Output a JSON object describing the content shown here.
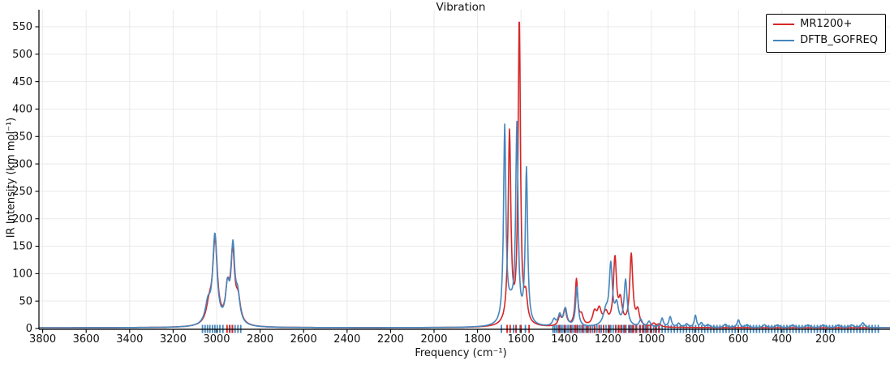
{
  "figure": {
    "title": "Vibration",
    "background": "#ffffff",
    "grid_color": "#e9e9e9",
    "spine_color": "#000000",
    "text_color": "#111111"
  },
  "legend": {
    "position": "upper right",
    "entries": [
      {
        "label": "MR1200+",
        "color": "#d62728"
      },
      {
        "label": "DFTB_GOFREQ",
        "color": "#4686bc"
      }
    ]
  },
  "chart_data": {
    "type": "line",
    "title": "Vibration",
    "xlabel": "Frequency (cm⁻¹)",
    "ylabel": "IR Intensity (km mol⁻¹)",
    "x_axis": {
      "reversed": true,
      "min": -97,
      "max": 3817,
      "ticks": [
        3800,
        3600,
        3400,
        3200,
        3000,
        2800,
        2600,
        2400,
        2200,
        2000,
        1800,
        1600,
        1400,
        1200,
        1000,
        800,
        600,
        400,
        200
      ]
    },
    "y_axis": {
      "min": 0,
      "max": 568,
      "ticks": [
        0,
        50,
        100,
        150,
        200,
        250,
        300,
        350,
        400,
        450,
        500,
        550
      ]
    },
    "grid": true,
    "series": [
      {
        "name": "MR1200+",
        "color": "#d62728",
        "baseline": 1.4,
        "peaks": [
          [
            3034,
            32,
            16
          ],
          [
            3007,
            152,
            13
          ],
          [
            2950,
            58,
            11
          ],
          [
            2926,
            126,
            11
          ],
          [
            2901,
            42,
            13
          ],
          [
            1653,
            350,
            7.5
          ],
          [
            1608,
            556,
            6.5
          ],
          [
            1578,
            45,
            9
          ],
          [
            1422,
            16,
            9
          ],
          [
            1398,
            30,
            9
          ],
          [
            1345,
            84,
            7
          ],
          [
            1322,
            18,
            10
          ],
          [
            1262,
            24,
            11
          ],
          [
            1240,
            28,
            11
          ],
          [
            1210,
            22,
            12
          ],
          [
            1168,
            122,
            8.5
          ],
          [
            1143,
            42,
            10
          ],
          [
            1093,
            130,
            8.5
          ],
          [
            1063,
            26,
            9
          ],
          [
            990,
            6,
            10
          ],
          [
            965,
            5,
            10
          ]
        ],
        "sticks": [
          2952,
          2939,
          2927,
          1664,
          1650,
          1623,
          1600,
          1563,
          1424,
          1400,
          1372,
          1350,
          1340,
          1318,
          1295,
          1282,
          1262,
          1240,
          1220,
          1194,
          1164,
          1150,
          1138,
          1123,
          1100,
          1086,
          1071,
          1052,
          1037,
          1022,
          1005,
          981,
          966
        ]
      },
      {
        "name": "DFTB_GOFREQ",
        "color": "#4686bc",
        "baseline": 1.4,
        "peaks": [
          [
            3040,
            36,
            15
          ],
          [
            3008,
            162,
            12
          ],
          [
            2950,
            62,
            11
          ],
          [
            2925,
            135,
            10
          ],
          [
            2903,
            48,
            12
          ],
          [
            1675,
            355,
            6.5
          ],
          [
            1647,
            30,
            20
          ],
          [
            1619,
            355,
            6.5
          ],
          [
            1575,
            282,
            6.5
          ],
          [
            1448,
            12,
            9
          ],
          [
            1422,
            20,
            9
          ],
          [
            1396,
            32,
            9
          ],
          [
            1343,
            72,
            7
          ],
          [
            1210,
            26,
            14
          ],
          [
            1187,
            108,
            8.5
          ],
          [
            1160,
            35,
            10
          ],
          [
            1119,
            84,
            8.5
          ],
          [
            1049,
            13,
            8
          ],
          [
            1011,
            10,
            8
          ],
          [
            951,
            16,
            7
          ],
          [
            914,
            19,
            7
          ],
          [
            875,
            7,
            8
          ],
          [
            838,
            6,
            8
          ],
          [
            798,
            22,
            6
          ],
          [
            770,
            8,
            7
          ],
          [
            740,
            5,
            8
          ],
          [
            660,
            6,
            8
          ],
          [
            600,
            14,
            7
          ],
          [
            560,
            5,
            8
          ],
          [
            480,
            5,
            9
          ],
          [
            420,
            5,
            9
          ],
          [
            350,
            5,
            9
          ],
          [
            280,
            5,
            9
          ],
          [
            210,
            5,
            9
          ],
          [
            140,
            5,
            9
          ],
          [
            80,
            5,
            9
          ],
          [
            28,
            9,
            9
          ]
        ],
        "sticks": [
          3065,
          3053,
          3042,
          3031,
          3019,
          3008,
          2997,
          2985,
          2971,
          2941,
          2928,
          2915,
          2902,
          2889,
          1690,
          1634,
          1604,
          1580,
          1453,
          1445,
          1436,
          1428,
          1419,
          1411,
          1402,
          1393,
          1384,
          1375,
          1366,
          1357,
          1347,
          1338,
          1329,
          1320,
          1311,
          1301,
          1291,
          1281,
          1271,
          1261,
          1251,
          1241,
          1231,
          1220,
          1209,
          1198,
          1187,
          1176,
          1165,
          1153,
          1141,
          1129,
          1117,
          1105,
          1093,
          1081,
          1068,
          1055,
          1042,
          1029,
          1016,
          1003,
          990,
          977,
          964,
          951,
          937,
          923,
          909,
          895,
          881,
          867,
          853,
          839,
          825,
          811,
          797,
          783,
          769,
          755,
          741,
          727,
          713,
          699,
          685,
          671,
          657,
          643,
          629,
          615,
          601,
          587,
          573,
          559,
          545,
          531,
          517,
          503,
          489,
          475,
          461,
          447,
          433,
          419,
          405,
          391,
          377,
          363,
          349,
          335,
          321,
          307,
          293,
          279,
          265,
          251,
          237,
          223,
          209,
          195,
          181,
          167,
          153,
          139,
          125,
          111,
          97,
          83,
          69,
          55,
          41,
          27,
          13,
          -1,
          -15,
          -29,
          -43
        ]
      }
    ]
  }
}
